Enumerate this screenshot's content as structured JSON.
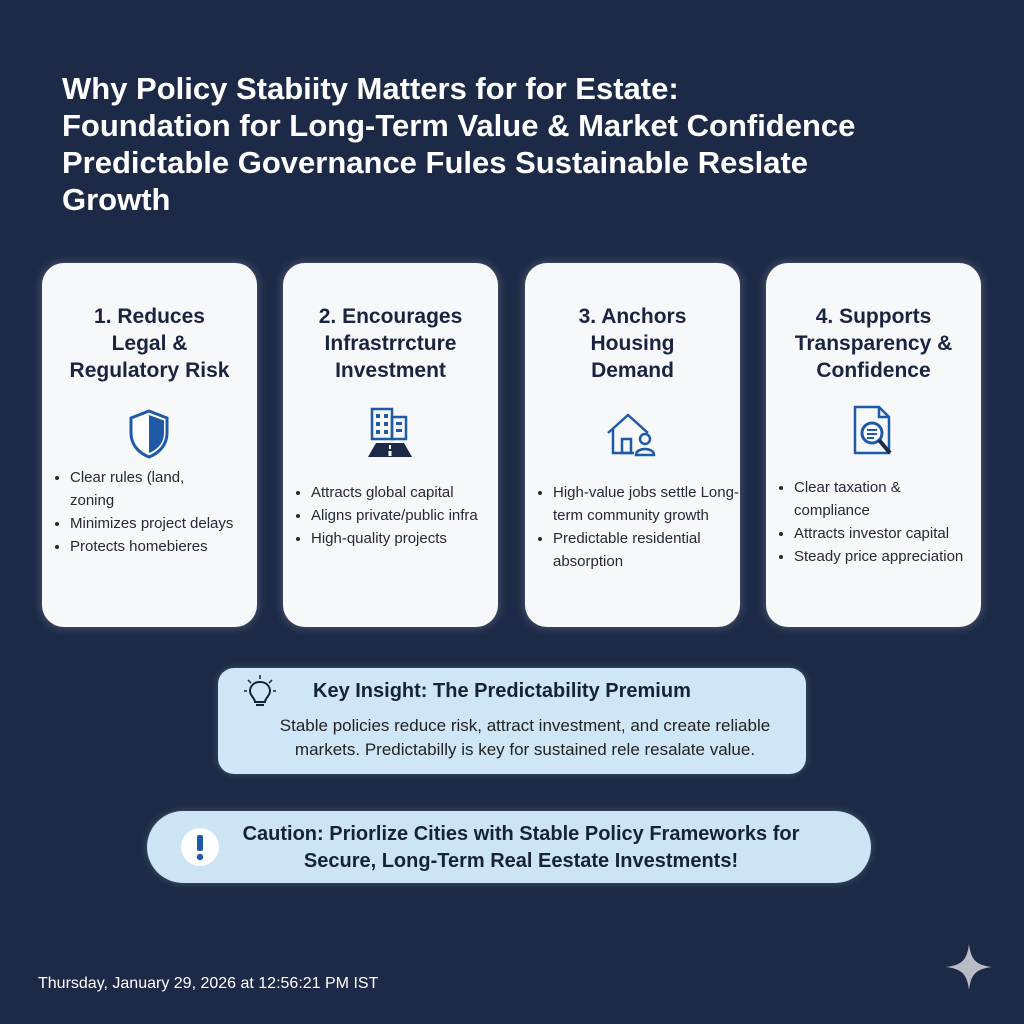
{
  "header": {
    "title_lines": [
      "Why Policy Stabiity Matters for for Estate:",
      "Foundation for Long-Term Value & Market Confidence",
      "Predictable Governance Fules Sustainable Reslate Growth"
    ]
  },
  "cards": [
    {
      "title_lines": [
        "1. Reduces",
        "Legal &",
        "Regulatory Risk"
      ],
      "bullets": [
        "Clear rules (land, zoning",
        "Minimizes project delays",
        "Protects homebieres"
      ]
    },
    {
      "title_lines": [
        "2. Encourages",
        "Infrastrrcture",
        "Investment"
      ],
      "bullets": [
        "Attracts global capital",
        "Aligns private/public infra",
        "High-quality projects"
      ]
    },
    {
      "title_lines": [
        "3. Anchors",
        "Housing",
        "Demand"
      ],
      "bullets": [
        "High-value jobs settle Long-term community growth",
        "Predictable residential absorption"
      ]
    },
    {
      "title_lines": [
        "4. Supports",
        "Transparency &",
        "Confidence"
      ],
      "bullets": [
        "Clear taxation & compliance",
        "Attracts investor capital",
        "Steady price appreciation"
      ]
    }
  ],
  "insight": {
    "title": "Key Insight: The Predictability Premium",
    "body": "Stable policies reduce risk, attract investment, and create reliable markets. Predictabilly is key for sustained rele resalate value."
  },
  "caution": {
    "text": "Caution: Priorlize Cities with Stable Policy Frameworks for Secure, Long-Term Real Eestate Investments!"
  },
  "footer": {
    "timestamp": "Thursday, January 29, 2026 at 12:56:21 PM IST"
  }
}
